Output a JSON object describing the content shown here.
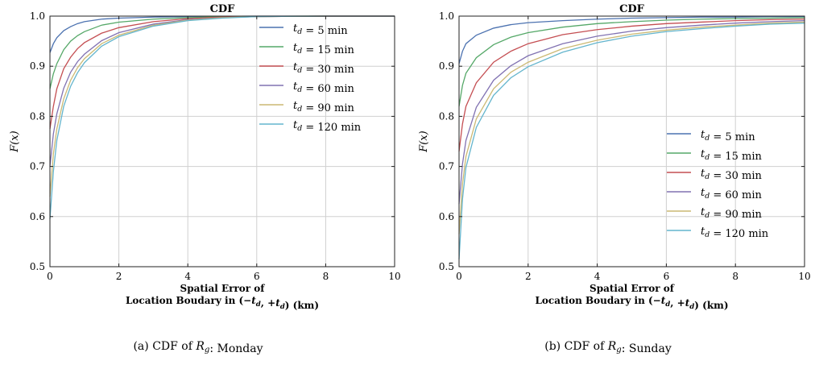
{
  "chart_data": [
    {
      "type": "line",
      "title": "CDF",
      "xlabel_line1": "Spatial Error of",
      "xlabel_line2": "Location Boudary in (−t_d, +t_d) (km)",
      "ylabel": "F(x)",
      "xlim": [
        0,
        10
      ],
      "ylim": [
        0.5,
        1.0
      ],
      "xticks": [
        "0",
        "2",
        "4",
        "6",
        "8",
        "10"
      ],
      "yticks": [
        "0.5",
        "0.6",
        "0.7",
        "0.8",
        "0.9",
        "1.0"
      ],
      "grid": true,
      "legend_position": "top-right",
      "caption": "(a) CDF of R_g: Monday",
      "series": [
        {
          "name": "t_d = 5 min",
          "color": "#4c72b0",
          "x": [
            0,
            0.1,
            0.2,
            0.4,
            0.6,
            0.8,
            1,
            1.5,
            2,
            3,
            4,
            5,
            6,
            8,
            10
          ],
          "y": [
            0.927,
            0.945,
            0.957,
            0.971,
            0.979,
            0.985,
            0.989,
            0.994,
            0.996,
            0.998,
            0.999,
            0.9995,
            1.0,
            1.0,
            1.0
          ]
        },
        {
          "name": "t_d = 15 min",
          "color": "#55a868",
          "x": [
            0,
            0.1,
            0.2,
            0.4,
            0.6,
            0.8,
            1,
            1.5,
            2,
            3,
            4,
            5,
            6,
            8,
            10
          ],
          "y": [
            0.855,
            0.885,
            0.905,
            0.933,
            0.95,
            0.961,
            0.969,
            0.982,
            0.988,
            0.994,
            0.997,
            0.999,
            0.9995,
            1.0,
            1.0
          ]
        },
        {
          "name": "t_d = 30 min",
          "color": "#c44e52",
          "x": [
            0,
            0.1,
            0.2,
            0.4,
            0.6,
            0.8,
            1,
            1.5,
            2,
            3,
            4,
            5,
            6,
            8,
            10
          ],
          "y": [
            0.775,
            0.82,
            0.855,
            0.895,
            0.918,
            0.935,
            0.947,
            0.966,
            0.977,
            0.989,
            0.995,
            0.998,
            0.999,
            1.0,
            1.0
          ]
        },
        {
          "name": "t_d = 60 min",
          "color": "#8172b2",
          "x": [
            0,
            0.1,
            0.2,
            0.4,
            0.6,
            0.8,
            1,
            1.5,
            2,
            3,
            4,
            5,
            6,
            8,
            10
          ],
          "y": [
            0.7,
            0.765,
            0.805,
            0.856,
            0.888,
            0.909,
            0.924,
            0.951,
            0.967,
            0.984,
            0.993,
            0.997,
            0.999,
            1.0,
            1.0
          ]
        },
        {
          "name": "t_d = 90 min",
          "color": "#ccb974",
          "x": [
            0,
            0.1,
            0.2,
            0.4,
            0.6,
            0.8,
            1,
            1.5,
            2,
            3,
            4,
            5,
            6,
            8,
            10
          ],
          "y": [
            0.64,
            0.725,
            0.775,
            0.835,
            0.872,
            0.897,
            0.915,
            0.945,
            0.962,
            0.982,
            0.992,
            0.997,
            0.999,
            1.0,
            1.0
          ]
        },
        {
          "name": "t_d = 120 min",
          "color": "#64b5cd",
          "x": [
            0,
            0.1,
            0.2,
            0.4,
            0.6,
            0.8,
            1,
            1.5,
            2,
            3,
            4,
            5,
            6,
            8,
            10
          ],
          "y": [
            0.595,
            0.69,
            0.752,
            0.82,
            0.86,
            0.887,
            0.907,
            0.94,
            0.959,
            0.98,
            0.991,
            0.996,
            0.999,
            1.0,
            1.0
          ]
        }
      ]
    },
    {
      "type": "line",
      "title": "CDF",
      "xlabel_line1": "Spatial Error of",
      "xlabel_line2": "Location Boudary in (−t_d, +t_d) (km)",
      "ylabel": "F(x)",
      "xlim": [
        0,
        10
      ],
      "ylim": [
        0.5,
        1.0
      ],
      "xticks": [
        "0",
        "2",
        "4",
        "6",
        "8",
        "10"
      ],
      "yticks": [
        "0.5",
        "0.6",
        "0.7",
        "0.8",
        "0.9",
        "1.0"
      ],
      "grid": true,
      "legend_position": "bottom-right",
      "caption": "(b) CDF of R_g: Sunday",
      "series": [
        {
          "name": "t_d = 5 min",
          "color": "#4c72b0",
          "x": [
            0,
            0.1,
            0.2,
            0.5,
            1,
            1.5,
            2,
            3,
            4,
            5,
            6,
            7,
            8,
            9,
            10
          ],
          "y": [
            0.905,
            0.93,
            0.945,
            0.962,
            0.976,
            0.983,
            0.987,
            0.991,
            0.994,
            0.996,
            0.997,
            0.998,
            0.998,
            0.999,
            0.999
          ]
        },
        {
          "name": "t_d = 15 min",
          "color": "#55a868",
          "x": [
            0,
            0.1,
            0.2,
            0.5,
            1,
            1.5,
            2,
            3,
            4,
            5,
            6,
            7,
            8,
            9,
            10
          ],
          "y": [
            0.82,
            0.862,
            0.886,
            0.917,
            0.943,
            0.958,
            0.967,
            0.978,
            0.985,
            0.989,
            0.992,
            0.994,
            0.995,
            0.996,
            0.997
          ]
        },
        {
          "name": "t_d = 30 min",
          "color": "#c44e52",
          "x": [
            0,
            0.1,
            0.2,
            0.5,
            1,
            1.5,
            2,
            3,
            4,
            5,
            6,
            7,
            8,
            9,
            10
          ],
          "y": [
            0.73,
            0.785,
            0.82,
            0.867,
            0.908,
            0.93,
            0.945,
            0.963,
            0.973,
            0.98,
            0.985,
            0.988,
            0.991,
            0.993,
            0.994
          ]
        },
        {
          "name": "t_d = 60 min",
          "color": "#8172b2",
          "x": [
            0,
            0.1,
            0.2,
            0.5,
            1,
            1.5,
            2,
            3,
            4,
            5,
            6,
            7,
            8,
            9,
            10
          ],
          "y": [
            0.625,
            0.705,
            0.752,
            0.818,
            0.872,
            0.901,
            0.921,
            0.945,
            0.96,
            0.97,
            0.977,
            0.982,
            0.986,
            0.989,
            0.991
          ]
        },
        {
          "name": "t_d = 90 min",
          "color": "#ccb974",
          "x": [
            0,
            0.1,
            0.2,
            0.5,
            1,
            1.5,
            2,
            3,
            4,
            5,
            6,
            7,
            8,
            9,
            10
          ],
          "y": [
            0.565,
            0.665,
            0.72,
            0.795,
            0.855,
            0.888,
            0.908,
            0.935,
            0.952,
            0.964,
            0.972,
            0.978,
            0.982,
            0.986,
            0.988
          ]
        },
        {
          "name": "t_d = 120 min",
          "color": "#64b5cd",
          "x": [
            0,
            0.1,
            0.2,
            0.5,
            1,
            1.5,
            2,
            3,
            4,
            5,
            6,
            7,
            8,
            9,
            10
          ],
          "y": [
            0.515,
            0.635,
            0.698,
            0.778,
            0.842,
            0.877,
            0.899,
            0.928,
            0.947,
            0.96,
            0.969,
            0.975,
            0.98,
            0.984,
            0.986
          ]
        }
      ]
    }
  ]
}
